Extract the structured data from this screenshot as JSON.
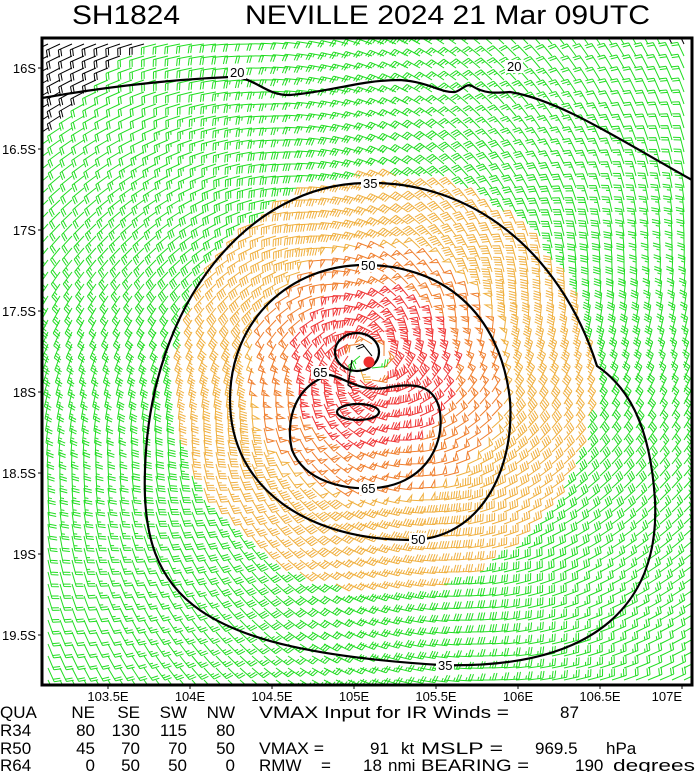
{
  "title": {
    "storm_id": "SH1824",
    "storm_name_time": "NEVILLE 2024 21 Mar 09UTC"
  },
  "chart_data": {
    "type": "wind-barb-map",
    "lon_ticks": [
      "103.5E",
      "104E",
      "104.5E",
      "105E",
      "105.5E",
      "106E",
      "106.5E",
      "107E"
    ],
    "lat_ticks": [
      "16S",
      "16.5S",
      "17S",
      "17.5S",
      "18S",
      "18.5S",
      "19S",
      "19.5S"
    ],
    "lon_range": [
      103.05,
      107.0
    ],
    "lat_range": [
      -15.8,
      -19.8
    ],
    "contour_levels": [
      "20",
      "35",
      "50",
      "65"
    ],
    "contour_labels": {
      "c20a": "20",
      "c20b": "20",
      "c35a": "35",
      "c35b": "35",
      "c50a": "50",
      "c50b": "50",
      "c65a": "65",
      "c65b": "65"
    },
    "storm_center": {
      "lon": 105.09,
      "lat": -17.81
    },
    "barb_colors": {
      "below_20": "#000000",
      "20_34": "#22dd22",
      "34_50": "#f0b040",
      "50_64": "#f08030",
      "64_plus": "#f03838"
    },
    "center_marker_color": "#f03030"
  },
  "table": {
    "header": {
      "label": "QUA",
      "ne": "NE",
      "se": "SE",
      "sw": "SW",
      "nw": "NW"
    },
    "rows": [
      {
        "label": "R34",
        "ne": "80",
        "se": "130",
        "sw": "115",
        "nw": "80"
      },
      {
        "label": "R50",
        "ne": "45",
        "se": "70",
        "sw": "70",
        "nw": "50"
      },
      {
        "label": "R64",
        "ne": "0",
        "se": "50",
        "sw": "50",
        "nw": "0"
      }
    ]
  },
  "info": {
    "vmax_input_label": "VMAX Input for IR Winds =",
    "vmax_input_value": "87",
    "vmax_label": "VMAX =",
    "vmax_value": "91",
    "vmax_unit": "kt",
    "mslp_label": "MSLP =",
    "mslp_value": "969.5",
    "mslp_unit": "hPa",
    "rmw_label": "RMW",
    "rmw_eq": "=",
    "rmw_value": "18",
    "rmw_unit": "nmi",
    "bearing_label": "BEARING =",
    "bearing_value": "190",
    "bearing_unit": "degrees"
  }
}
